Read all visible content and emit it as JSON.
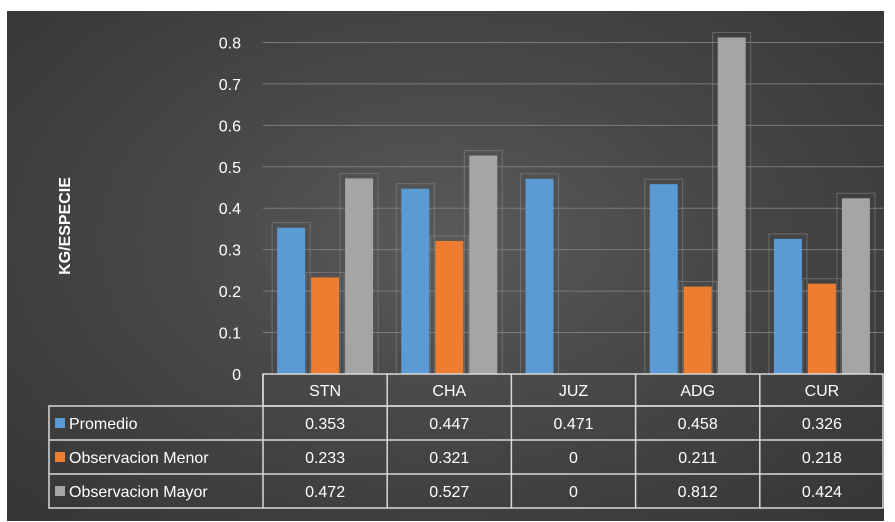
{
  "chart_data": {
    "type": "bar",
    "ylabel": "KG/ESPECIE",
    "ylim": [
      0,
      0.9
    ],
    "yticks": [
      "0",
      "0.1",
      "0.2",
      "0.3",
      "0.4",
      "0.5",
      "0.6",
      "0.7",
      "0.8",
      "0.9"
    ],
    "categories": [
      "STN",
      "CHA",
      "JUZ",
      "ADG",
      "CUR"
    ],
    "series": [
      {
        "name": "Promedio",
        "color": "#5b9bd5",
        "values": [
          0.353,
          0.447,
          0.471,
          0.458,
          0.326
        ],
        "labels": [
          "0.353",
          "0.447",
          "0.471",
          "0.458",
          "0.326"
        ]
      },
      {
        "name": "Observacion Menor",
        "color": "#ed7d31",
        "values": [
          0.233,
          0.321,
          0,
          0.211,
          0.218
        ],
        "labels": [
          "0.233",
          "0.321",
          "0",
          "0.211",
          "0.218"
        ]
      },
      {
        "name": "Observacion Mayor",
        "color": "#a5a5a5",
        "values": [
          0.472,
          0.527,
          0,
          0.812,
          0.424
        ],
        "labels": [
          "0.472",
          "0.527",
          "0",
          "0.812",
          "0.424"
        ]
      }
    ],
    "grid": true,
    "legend": "data-table-bottom"
  }
}
